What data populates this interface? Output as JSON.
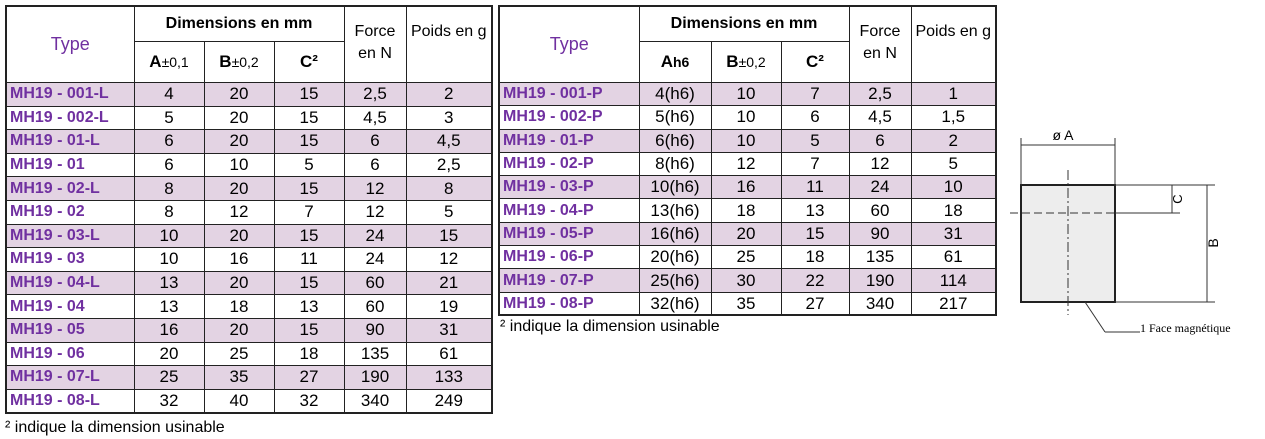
{
  "table1": {
    "header": {
      "type": "Type",
      "dimensions": "Dimensions en mm",
      "a": "A",
      "a_tol": "±0,1",
      "b": "B",
      "b_tol": "±0,2",
      "c": "C²",
      "force": "Force en N",
      "poids": "Poids en g"
    },
    "rows": [
      [
        "MH19 - 001-L",
        "4",
        "20",
        "15",
        "2,5",
        "2"
      ],
      [
        "MH19 - 002-L",
        "5",
        "20",
        "15",
        "4,5",
        "3"
      ],
      [
        "MH19 - 01-L",
        "6",
        "20",
        "15",
        "6",
        "4,5"
      ],
      [
        "MH19 - 01",
        "6",
        "10",
        "5",
        "6",
        "2,5"
      ],
      [
        "MH19 - 02-L",
        "8",
        "20",
        "15",
        "12",
        "8"
      ],
      [
        "MH19 - 02",
        "8",
        "12",
        "7",
        "12",
        "5"
      ],
      [
        "MH19 - 03-L",
        "10",
        "20",
        "15",
        "24",
        "15"
      ],
      [
        "MH19 - 03",
        "10",
        "16",
        "11",
        "24",
        "12"
      ],
      [
        "MH19 - 04-L",
        "13",
        "20",
        "15",
        "60",
        "21"
      ],
      [
        "MH19 - 04",
        "13",
        "18",
        "13",
        "60",
        "19"
      ],
      [
        "MH19 - 05",
        "16",
        "20",
        "15",
        "90",
        "31"
      ],
      [
        "MH19 - 06",
        "20",
        "25",
        "18",
        "135",
        "61"
      ],
      [
        "MH19 - 07-L",
        "25",
        "35",
        "27",
        "190",
        "133"
      ],
      [
        "MH19 - 08-L",
        "32",
        "40",
        "32",
        "340",
        "249"
      ]
    ],
    "footnote": "² indique la dimension usinable"
  },
  "table2": {
    "header": {
      "type": "Type",
      "dimensions": "Dimensions en mm",
      "a": "A",
      "a_tol": "h6",
      "b": "B",
      "b_tol": "±0,2",
      "c": "C²",
      "force": "Force en N",
      "poids": "Poids en g"
    },
    "rows": [
      [
        "MH19 - 001-P",
        "4(h6)",
        "10",
        "7",
        "2,5",
        "1"
      ],
      [
        "MH19 - 002-P",
        "5(h6)",
        "10",
        "6",
        "4,5",
        "1,5"
      ],
      [
        "MH19 - 01-P",
        "6(h6)",
        "10",
        "5",
        "6",
        "2"
      ],
      [
        "MH19 - 02-P",
        "8(h6)",
        "12",
        "7",
        "12",
        "5"
      ],
      [
        "MH19 - 03-P",
        "10(h6)",
        "16",
        "11",
        "24",
        "10"
      ],
      [
        "MH19 - 04-P",
        "13(h6)",
        "18",
        "13",
        "60",
        "18"
      ],
      [
        "MH19 - 05-P",
        "16(h6)",
        "20",
        "15",
        "90",
        "31"
      ],
      [
        "MH19 - 06-P",
        "20(h6)",
        "25",
        "18",
        "135",
        "61"
      ],
      [
        "MH19 - 07-P",
        "25(h6)",
        "30",
        "22",
        "190",
        "114"
      ],
      [
        "MH19 - 08-P",
        "32(h6)",
        "35",
        "27",
        "340",
        "217"
      ]
    ],
    "footnote": "² indique la dimension usinable"
  },
  "diagram": {
    "dim_a": "ø A",
    "dim_c": "C",
    "dim_b": "B",
    "label": "1 Face magnétique"
  }
}
